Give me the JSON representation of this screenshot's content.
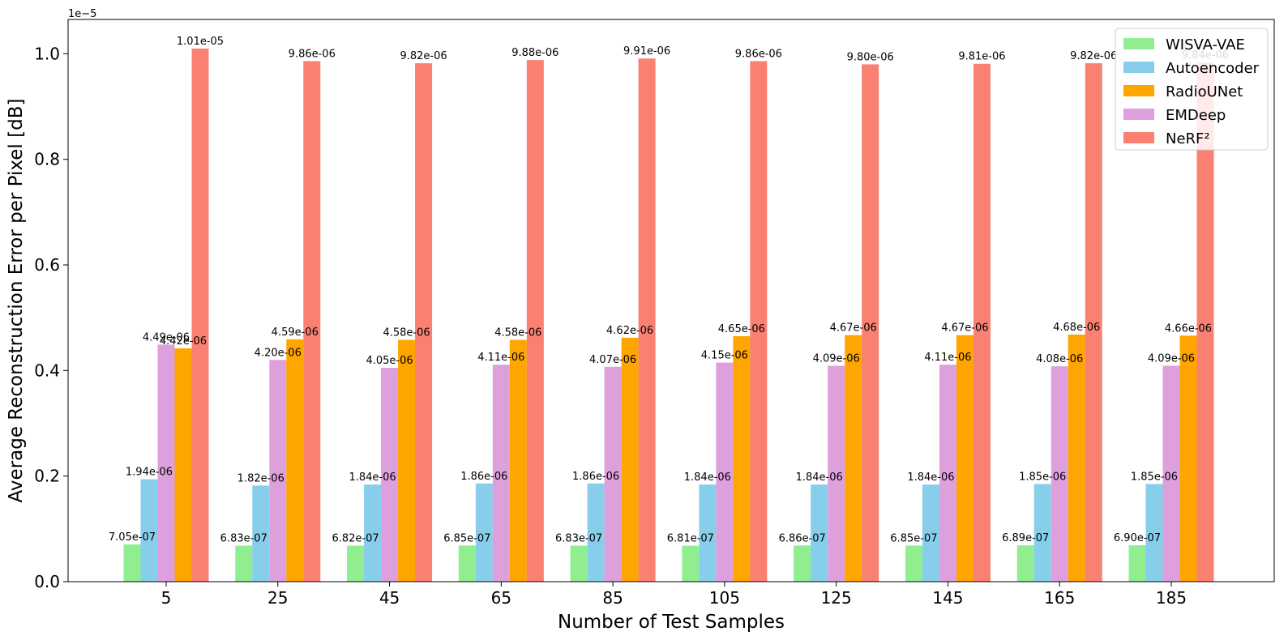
{
  "chart_data": {
    "type": "bar",
    "xlabel": "Number of Test Samples",
    "ylabel": "Average Reconstruction Error per Pixel [dB]",
    "y_offset_label": "1e−5",
    "y_scale": 1e-05,
    "ylim": [
      0,
      1.065
    ],
    "yticks": [
      0.0,
      0.2,
      0.4,
      0.6,
      0.8,
      1.0
    ],
    "ytick_labels": [
      "0.0",
      "0.2",
      "0.4",
      "0.6",
      "0.8",
      "1.0"
    ],
    "categories": [
      "5",
      "25",
      "45",
      "65",
      "85",
      "105",
      "125",
      "145",
      "165",
      "185"
    ],
    "legend_position": "top-right",
    "series": [
      {
        "name": "WISVA-VAE",
        "color": "#90ee90",
        "values": [
          0.0705,
          0.0683,
          0.0682,
          0.0685,
          0.0683,
          0.0681,
          0.0686,
          0.0685,
          0.0689,
          0.069
        ],
        "labels": [
          "7.05e-07",
          "6.83e-07",
          "6.82e-07",
          "6.85e-07",
          "6.83e-07",
          "6.81e-07",
          "6.86e-07",
          "6.85e-07",
          "6.89e-07",
          "6.90e-07"
        ]
      },
      {
        "name": "Autoencoder",
        "color": "#87ceeb",
        "values": [
          0.194,
          0.182,
          0.184,
          0.186,
          0.186,
          0.184,
          0.184,
          0.184,
          0.185,
          0.185
        ],
        "labels": [
          "1.94e-06",
          "1.82e-06",
          "1.84e-06",
          "1.86e-06",
          "1.86e-06",
          "1.84e-06",
          "1.84e-06",
          "1.84e-06",
          "1.85e-06",
          "1.85e-06"
        ]
      },
      {
        "name": "EMDeep",
        "color": "#dda0dd",
        "values": [
          0.449,
          0.42,
          0.405,
          0.411,
          0.407,
          0.415,
          0.409,
          0.411,
          0.408,
          0.409
        ],
        "labels": [
          "4.49e-06",
          "4.20e-06",
          "4.05e-06",
          "4.11e-06",
          "4.07e-06",
          "4.15e-06",
          "4.09e-06",
          "4.11e-06",
          "4.08e-06",
          "4.09e-06"
        ]
      },
      {
        "name": "RadioUNet",
        "color": "#ffa500",
        "values": [
          0.442,
          0.459,
          0.458,
          0.458,
          0.462,
          0.465,
          0.467,
          0.467,
          0.468,
          0.466
        ],
        "labels": [
          "4.42e-06",
          "4.59e-06",
          "4.58e-06",
          "4.58e-06",
          "4.62e-06",
          "4.65e-06",
          "4.67e-06",
          "4.67e-06",
          "4.68e-06",
          "4.66e-06"
        ]
      },
      {
        "name": "NeRF²",
        "color": "#fa8072",
        "values": [
          1.01,
          0.986,
          0.982,
          0.988,
          0.991,
          0.986,
          0.98,
          0.981,
          0.982,
          0.984
        ],
        "labels": [
          "1.01e-05",
          "9.86e-06",
          "9.82e-06",
          "9.88e-06",
          "9.91e-06",
          "9.86e-06",
          "9.80e-06",
          "9.81e-06",
          "9.82e-06",
          "9.84e-06"
        ]
      }
    ],
    "legend_order": [
      "WISVA-VAE",
      "Autoencoder",
      "RadioUNet",
      "EMDeep",
      "NeRF²"
    ]
  }
}
